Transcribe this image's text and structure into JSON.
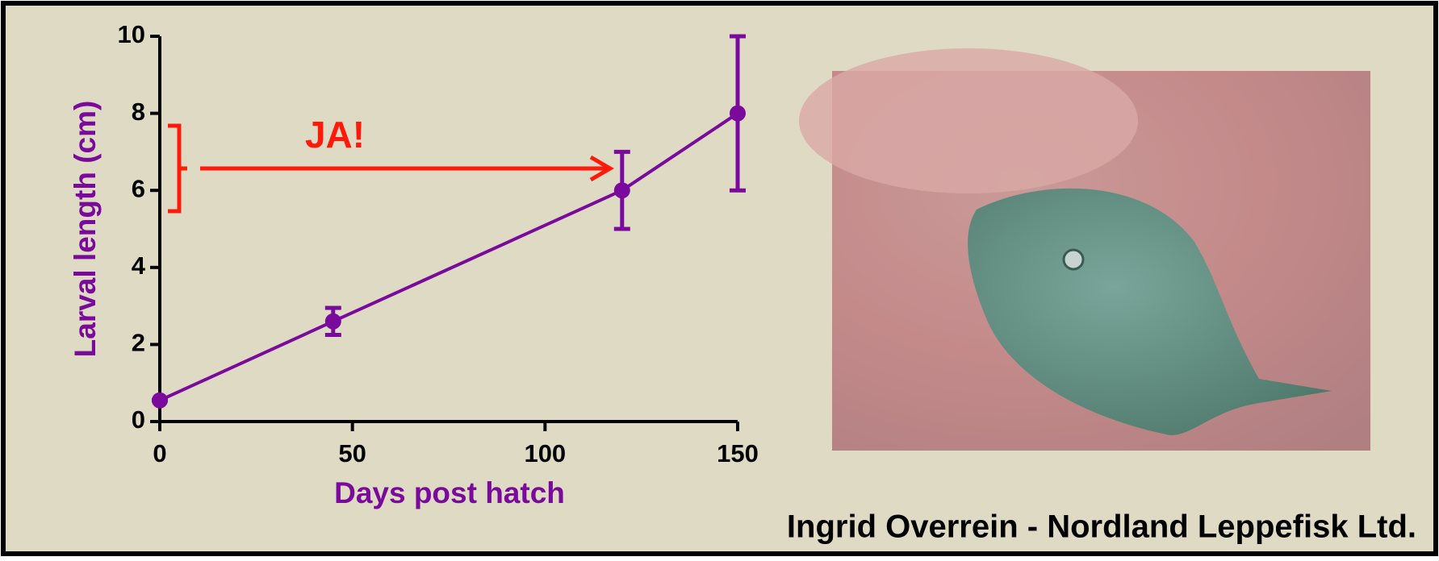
{
  "chart_data": {
    "type": "line",
    "x_label": "Days post hatch",
    "y_label": "Larval length (cm)",
    "series": [
      {
        "color": "#7a0a9c",
        "x": [
          0,
          45,
          120,
          150
        ],
        "values": [
          0.55,
          2.6,
          6,
          8
        ],
        "errors": [
          0,
          0.35,
          1,
          2
        ]
      }
    ],
    "xlim": [
      0,
      150
    ],
    "xticks": [
      0,
      50,
      100,
      150
    ],
    "ylim": [
      0,
      10
    ],
    "yticks": [
      0,
      2,
      4,
      6,
      8,
      10
    ],
    "annotation": "JA!"
  },
  "credit": "Ingrid Overrein - Nordland Leppefisk Ltd."
}
